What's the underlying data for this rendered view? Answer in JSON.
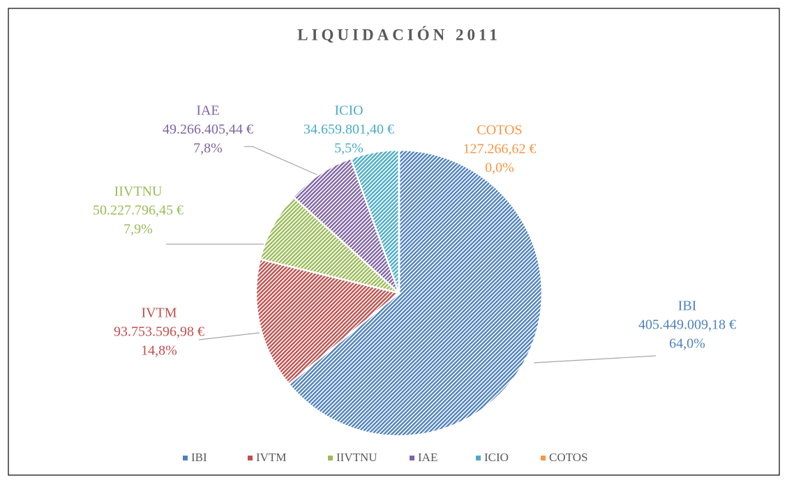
{
  "chart_data": {
    "type": "pie",
    "title": "LIQUIDACIÓN 2011",
    "categories": [
      "IBI",
      "IVTM",
      "IIVTNU",
      "IAE",
      "ICIO",
      "COTOS"
    ],
    "values": [
      405449009.18,
      93753596.98,
      50227796.45,
      49266405.44,
      34659801.4,
      127266.62
    ],
    "value_labels": [
      "405.449.009,18 €",
      "93.753.596,98 €",
      "50.227.796,45 €",
      "49.266.405,44 €",
      "34.659.801,40 €",
      "127.266,62 €"
    ],
    "shares": [
      64.0,
      14.8,
      7.9,
      7.8,
      5.5,
      0.0
    ],
    "share_labels": [
      "64,0%",
      "14,8%",
      "7,9%",
      "7,8%",
      "5,5%",
      "0,0%"
    ],
    "colors": [
      "#4f81bd",
      "#c0504d",
      "#9bbb59",
      "#8064a2",
      "#4bacc6",
      "#f79646"
    ],
    "legend": "bottom"
  }
}
